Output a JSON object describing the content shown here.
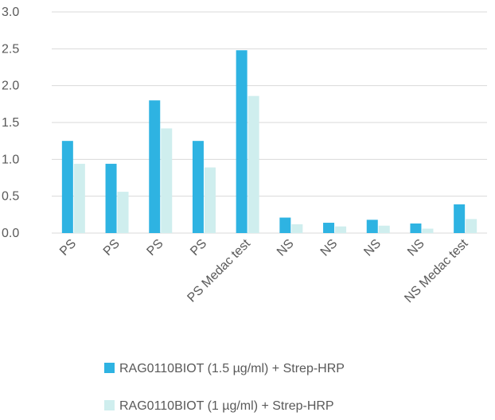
{
  "chart_data": {
    "type": "bar",
    "categories": [
      "PS",
      "PS",
      "PS",
      "PS",
      "PS Medac test",
      "NS",
      "NS",
      "NS",
      "NS",
      "NS Medac test"
    ],
    "series": [
      {
        "name": "RAG0110BIOT (1.5 µg/ml) + Strep-HRP",
        "color": "#2eb3e2",
        "values": [
          1.25,
          0.94,
          1.8,
          1.25,
          2.48,
          0.21,
          0.14,
          0.18,
          0.13,
          0.39
        ]
      },
      {
        "name": "RAG0110BIOT (1 µg/ml) + Strep-HRP",
        "color": "#cfeeee",
        "values": [
          0.94,
          0.56,
          1.42,
          0.89,
          1.86,
          0.12,
          0.09,
          0.1,
          0.06,
          0.19
        ]
      }
    ],
    "yticks": [
      "0.0",
      "0.5",
      "1.0",
      "1.5",
      "2.0",
      "2.5",
      "3.0"
    ],
    "ylim": [
      0,
      3
    ],
    "grid": true,
    "legend_position": "bottom",
    "title": "",
    "xlabel": "",
    "ylabel": ""
  }
}
